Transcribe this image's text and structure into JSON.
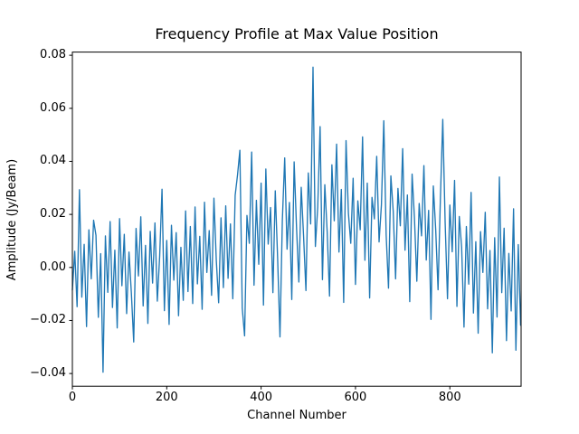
{
  "chart_data": {
    "type": "line",
    "title": "Frequency Profile at Max Value Position",
    "xlabel": "Channel Number",
    "ylabel": "Amplitude (Jy/Beam)",
    "xlim": [
      0,
      951
    ],
    "ylim": [
      -0.0448,
      0.0812
    ],
    "grid": false,
    "legend": "none",
    "x_ticks": [
      {
        "value": 0,
        "label": "0"
      },
      {
        "value": 200,
        "label": "200"
      },
      {
        "value": 400,
        "label": "400"
      },
      {
        "value": 600,
        "label": "600"
      },
      {
        "value": 800,
        "label": "800"
      }
    ],
    "y_ticks": [
      {
        "value": 0.08,
        "label": "0.08"
      },
      {
        "value": 0.06,
        "label": "0.06"
      },
      {
        "value": 0.04,
        "label": "0.04"
      },
      {
        "value": 0.02,
        "label": "0.02"
      },
      {
        "value": 0.0,
        "label": "0.00"
      },
      {
        "value": -0.02,
        "label": "−0.02"
      },
      {
        "value": -0.04,
        "label": "−0.04"
      }
    ],
    "annotations": {
      "max_point": {
        "channel": 510,
        "amplitude": 0.0755
      },
      "min_point": {
        "channel": 65,
        "amplitude": -0.0395
      }
    },
    "series": [
      {
        "name": "frequency-profile",
        "color": "#1f77b4",
        "x_start": 0,
        "x_step": 5,
        "values": [
          -0.0085,
          0.0061,
          -0.0148,
          0.0293,
          -0.0112,
          0.0087,
          -0.0223,
          0.0142,
          -0.0043,
          0.0178,
          0.0121,
          -0.0188,
          0.0052,
          -0.0395,
          0.0119,
          -0.0094,
          0.0173,
          -0.0151,
          0.0065,
          -0.0228,
          0.0184,
          -0.0069,
          0.0125,
          -0.0174,
          0.0058,
          -0.0096,
          -0.0281,
          0.0147,
          -0.0032,
          0.0191,
          -0.0145,
          0.0083,
          -0.0211,
          0.0136,
          -0.0059,
          0.0168,
          -0.0127,
          0.0042,
          0.0295,
          -0.0163,
          0.0102,
          -0.0215,
          0.0159,
          -0.0048,
          0.0131,
          -0.0182,
          0.0076,
          -0.0124,
          0.0213,
          -0.0091,
          0.0154,
          -0.0136,
          0.0228,
          -0.0062,
          0.0117,
          -0.0158,
          0.0246,
          -0.0019,
          0.0139,
          -0.0105,
          0.0261,
          0.0028,
          -0.0133,
          0.0187,
          -0.0076,
          0.0232,
          -0.0041,
          0.0164,
          -0.0118,
          0.0272,
          0.0348,
          0.0442,
          -0.0153,
          -0.0258,
          0.0196,
          0.0091,
          0.0435,
          -0.0067,
          0.0253,
          0.0012,
          0.0318,
          -0.0142,
          0.0371,
          0.0088,
          0.0226,
          -0.0095,
          0.0289,
          0.0034,
          -0.0262,
          0.0177,
          0.0413,
          0.0069,
          0.0245,
          -0.0121,
          0.0398,
          0.0153,
          -0.0055,
          0.0302,
          0.0118,
          -0.0087,
          0.0356,
          0.0164,
          0.0755,
          0.0079,
          0.0228,
          0.0531,
          -0.0046,
          0.0312,
          0.0135,
          -0.0108,
          0.0387,
          0.0176,
          0.0465,
          0.0058,
          0.0294,
          -0.0132,
          0.0478,
          0.0205,
          0.0091,
          0.0336,
          -0.0064,
          0.0251,
          0.0142,
          0.0492,
          0.0027,
          0.0318,
          -0.0115,
          0.0264,
          0.0183,
          0.0419,
          0.0096,
          0.0237,
          0.0553,
          0.0124,
          -0.0078,
          0.0345,
          0.0211,
          -0.0043,
          0.0298,
          0.0157,
          0.0448,
          0.0065,
          0.0273,
          -0.0129,
          0.0352,
          0.0186,
          -0.0052,
          0.0241,
          0.0119,
          0.0384,
          0.0028,
          0.0215,
          -0.0196,
          0.0307,
          0.0143,
          -0.0084,
          0.0262,
          0.0558,
          0.0171,
          -0.0118,
          0.0235,
          0.0059,
          0.0328,
          -0.0147,
          0.0192,
          0.0076,
          -0.0225,
          0.0154,
          -0.0063,
          0.0283,
          -0.0172,
          0.0097,
          -0.0248,
          0.0135,
          -0.0019,
          0.0208,
          -0.0156,
          0.0064,
          -0.0322,
          0.0112,
          -0.0187,
          0.0341,
          -0.0095,
          0.0148,
          -0.0276,
          0.0053,
          -0.0164,
          0.0221,
          -0.0312,
          0.0086,
          -0.0218
        ]
      }
    ]
  }
}
